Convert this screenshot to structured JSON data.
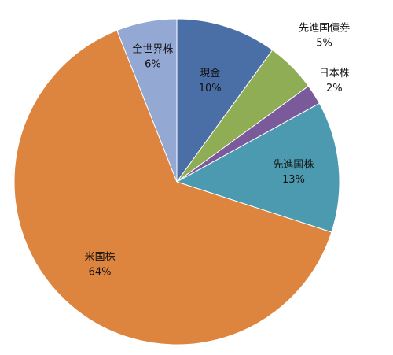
{
  "chart_data": {
    "type": "pie",
    "title": "",
    "start_angle_deg": 0,
    "direction": "clockwise",
    "slices": [
      {
        "category": "現金",
        "value": 10,
        "value_label": "10%",
        "color": "#4a6fa6"
      },
      {
        "category": "先進国債券",
        "value": 5,
        "value_label": "5%",
        "color": "#8fad55"
      },
      {
        "category": "日本株",
        "value": 2,
        "value_label": "2%",
        "color": "#7a5a9a"
      },
      {
        "category": "先進国株",
        "value": 13,
        "value_label": "13%",
        "color": "#4b9ab0"
      },
      {
        "category": "米国株",
        "value": 64,
        "value_label": "64%",
        "color": "#dd843f"
      },
      {
        "category": "全世界株",
        "value": 6,
        "value_label": "6%",
        "color": "#94a8d4"
      }
    ]
  }
}
